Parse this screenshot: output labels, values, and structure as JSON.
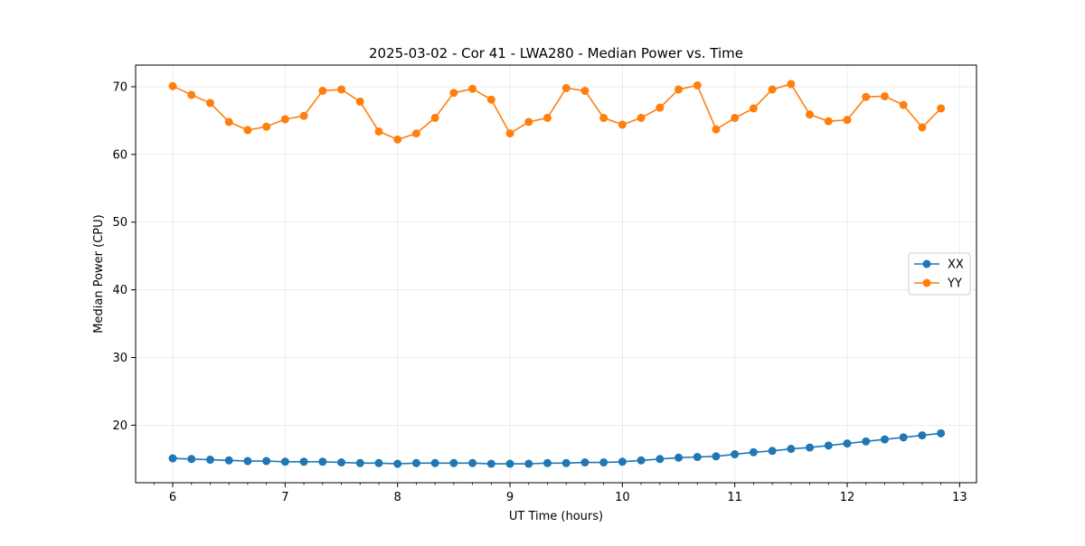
{
  "chart_data": {
    "type": "line",
    "title": "2025-03-02 - Cor 41 - LWA280 - Median Power vs. Time",
    "xlabel": "UT Time (hours)",
    "ylabel": "Median Power (CPU)",
    "xlim": [
      5.67,
      13.15
    ],
    "ylim": [
      11.5,
      73.2
    ],
    "xticks": [
      6,
      7,
      8,
      9,
      10,
      11,
      12,
      13
    ],
    "yticks": [
      20,
      30,
      40,
      50,
      60,
      70
    ],
    "grid": true,
    "legend_position": "center-right",
    "x": [
      6.0,
      6.1667,
      6.3333,
      6.5,
      6.6667,
      6.8333,
      7.0,
      7.1667,
      7.3333,
      7.5,
      7.6667,
      7.8333,
      8.0,
      8.1667,
      8.3333,
      8.5,
      8.6667,
      8.8333,
      9.0,
      9.1667,
      9.3333,
      9.5,
      9.6667,
      9.8333,
      10.0,
      10.1667,
      10.3333,
      10.5,
      10.6667,
      10.8333,
      11.0,
      11.1667,
      11.3333,
      11.5,
      11.6667,
      11.8333,
      12.0,
      12.1667,
      12.3333,
      12.5,
      12.6667,
      12.8333
    ],
    "series": [
      {
        "name": "XX",
        "color": "#1f77b4",
        "values": [
          15.1,
          15.0,
          14.9,
          14.8,
          14.7,
          14.7,
          14.6,
          14.6,
          14.6,
          14.5,
          14.4,
          14.4,
          14.3,
          14.4,
          14.4,
          14.4,
          14.4,
          14.3,
          14.3,
          14.3,
          14.4,
          14.4,
          14.5,
          14.5,
          14.6,
          14.8,
          15.0,
          15.2,
          15.3,
          15.4,
          15.7,
          16.0,
          16.2,
          16.5,
          16.7,
          17.0,
          17.3,
          17.6,
          17.9,
          18.2,
          18.5,
          18.8
        ]
      },
      {
        "name": "YY",
        "color": "#ff7f0e",
        "values": [
          70.1,
          68.8,
          67.6,
          64.8,
          63.6,
          64.1,
          65.2,
          65.7,
          69.4,
          69.6,
          67.8,
          63.4,
          62.2,
          63.1,
          65.4,
          69.1,
          69.7,
          68.1,
          63.1,
          64.8,
          65.4,
          69.8,
          69.4,
          65.4,
          64.4,
          65.4,
          66.9,
          69.6,
          70.2,
          63.7,
          65.4,
          66.8,
          69.6,
          70.4,
          65.9,
          64.9,
          65.1,
          68.5,
          68.6,
          67.3,
          64.0,
          66.8
        ]
      }
    ]
  }
}
